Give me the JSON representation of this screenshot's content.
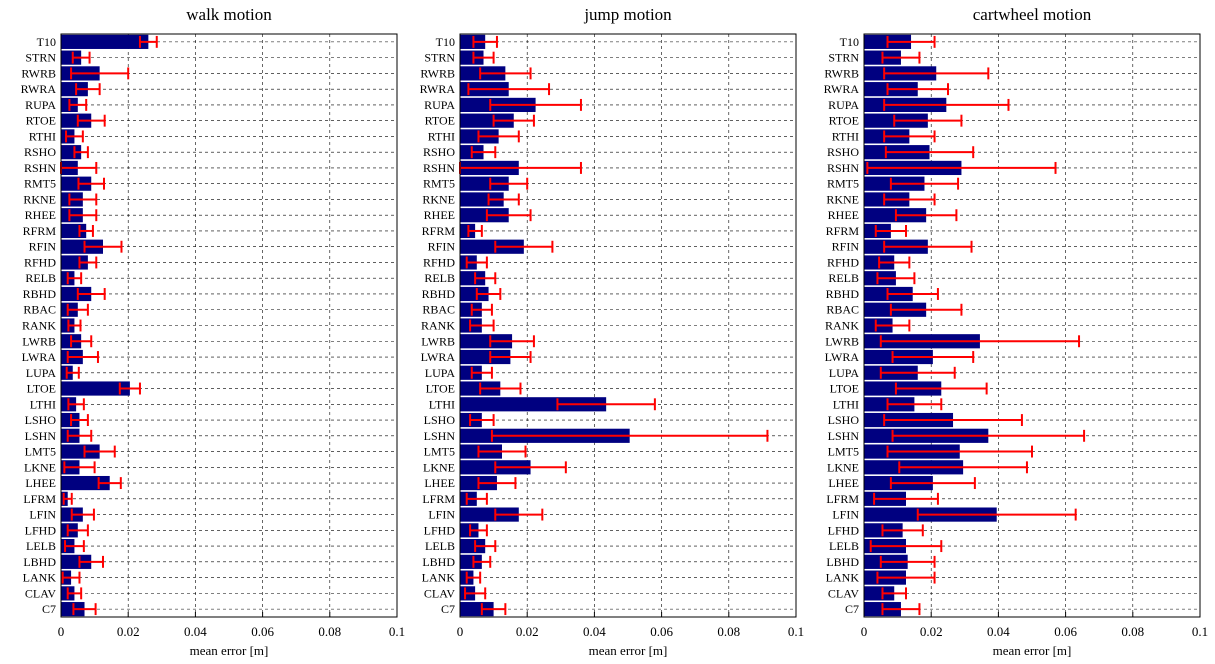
{
  "colors": {
    "bar": "#000080",
    "error": "#ff0000",
    "grid": "#000000",
    "axis": "#000000"
  },
  "chart_data": [
    {
      "type": "bar",
      "orientation": "horizontal",
      "title": "walk motion",
      "xlabel": "mean error [m]",
      "xlim": [
        0,
        0.1
      ],
      "xticks": [
        "0",
        "0.02",
        "0.04",
        "0.06",
        "0.08",
        "0.1"
      ],
      "grid": true,
      "categories": [
        "T10",
        "STRN",
        "RWRB",
        "RWRA",
        "RUPA",
        "RTOE",
        "RTHI",
        "RSHO",
        "RSHN",
        "RMT5",
        "RKNE",
        "RHEE",
        "RFRM",
        "RFIN",
        "RFHD",
        "RELB",
        "RBHD",
        "RBAC",
        "RANK",
        "LWRB",
        "LWRA",
        "LUPA",
        "LTOE",
        "LTHI",
        "LSHO",
        "LSHN",
        "LMT5",
        "LKNE",
        "LHEE",
        "LFRM",
        "LFIN",
        "LFHD",
        "LELB",
        "LBHD",
        "LANK",
        "CLAV",
        "C7"
      ],
      "values": [
        0.026,
        0.006,
        0.0115,
        0.008,
        0.005,
        0.009,
        0.004,
        0.006,
        0.005,
        0.009,
        0.0065,
        0.0065,
        0.0075,
        0.0125,
        0.008,
        0.004,
        0.009,
        0.005,
        0.004,
        0.006,
        0.0065,
        0.0035,
        0.0205,
        0.0045,
        0.0055,
        0.0055,
        0.0115,
        0.0055,
        0.0145,
        0.002,
        0.0065,
        0.005,
        0.004,
        0.009,
        0.003,
        0.004,
        0.007
      ],
      "errors": [
        0.0025,
        0.0025,
        0.0085,
        0.0035,
        0.0025,
        0.004,
        0.0025,
        0.002,
        0.0055,
        0.0038,
        0.004,
        0.004,
        0.002,
        0.0055,
        0.0025,
        0.002,
        0.004,
        0.003,
        0.0018,
        0.003,
        0.0045,
        0.0018,
        0.003,
        0.0023,
        0.0025,
        0.0035,
        0.0045,
        0.0045,
        0.0033,
        0.0012,
        0.0033,
        0.003,
        0.0028,
        0.0035,
        0.0025,
        0.002,
        0.0033
      ]
    },
    {
      "type": "bar",
      "orientation": "horizontal",
      "title": "jump motion",
      "xlabel": "mean error [m]",
      "xlim": [
        0,
        0.1
      ],
      "xticks": [
        "0",
        "0.02",
        "0.04",
        "0.06",
        "0.08",
        "0.1"
      ],
      "grid": true,
      "categories": [
        "T10",
        "STRN",
        "RWRB",
        "RWRA",
        "RUPA",
        "RTOE",
        "RTHI",
        "RSHO",
        "RSHN",
        "RMT5",
        "RKNE",
        "RHEE",
        "RFRM",
        "RFIN",
        "RFHD",
        "RELB",
        "RBHD",
        "RBAC",
        "RANK",
        "LWRB",
        "LWRA",
        "LUPA",
        "LTOE",
        "LTHI",
        "LSHO",
        "LSHN",
        "LMT5",
        "LKNE",
        "LHEE",
        "LFRM",
        "LFIN",
        "LFHD",
        "LELB",
        "LBHD",
        "LANK",
        "CLAV",
        "C7"
      ],
      "values": [
        0.0075,
        0.007,
        0.0135,
        0.0145,
        0.0225,
        0.016,
        0.0115,
        0.007,
        0.0175,
        0.0145,
        0.013,
        0.0145,
        0.0045,
        0.019,
        0.005,
        0.0075,
        0.0085,
        0.0065,
        0.0065,
        0.0155,
        0.015,
        0.0065,
        0.012,
        0.0435,
        0.0065,
        0.0505,
        0.0125,
        0.021,
        0.011,
        0.005,
        0.0175,
        0.0055,
        0.0075,
        0.0065,
        0.004,
        0.0045,
        0.01
      ],
      "errors": [
        0.0035,
        0.003,
        0.0075,
        0.012,
        0.0135,
        0.006,
        0.006,
        0.0035,
        0.0185,
        0.0055,
        0.0045,
        0.0065,
        0.002,
        0.0085,
        0.003,
        0.003,
        0.0035,
        0.003,
        0.0035,
        0.0065,
        0.006,
        0.003,
        0.006,
        0.0145,
        0.0035,
        0.041,
        0.007,
        0.0105,
        0.0055,
        0.003,
        0.007,
        0.0025,
        0.003,
        0.0025,
        0.002,
        0.003,
        0.0035
      ]
    },
    {
      "type": "bar",
      "orientation": "horizontal",
      "title": "cartwheel motion",
      "xlabel": "mean error [m]",
      "xlim": [
        0,
        0.1
      ],
      "xticks": [
        "0",
        "0.02",
        "0.04",
        "0.06",
        "0.08",
        "0.1"
      ],
      "grid": true,
      "categories": [
        "T10",
        "STRN",
        "RWRB",
        "RWRA",
        "RUPA",
        "RTOE",
        "RTHI",
        "RSHO",
        "RSHN",
        "RMT5",
        "RKNE",
        "RHEE",
        "RFRM",
        "RFIN",
        "RFHD",
        "RELB",
        "RBHD",
        "RBAC",
        "RANK",
        "LWRB",
        "LWRA",
        "LUPA",
        "LTOE",
        "LTHI",
        "LSHO",
        "LSHN",
        "LMT5",
        "LKNE",
        "LHEE",
        "LFRM",
        "LFIN",
        "LFHD",
        "LELB",
        "LBHD",
        "LANK",
        "CLAV",
        "C7"
      ],
      "values": [
        0.014,
        0.011,
        0.0215,
        0.016,
        0.0245,
        0.019,
        0.0135,
        0.0195,
        0.029,
        0.018,
        0.0135,
        0.0185,
        0.008,
        0.019,
        0.009,
        0.0095,
        0.0145,
        0.0185,
        0.0085,
        0.0345,
        0.0205,
        0.016,
        0.023,
        0.015,
        0.0265,
        0.037,
        0.0285,
        0.0295,
        0.0205,
        0.0125,
        0.0395,
        0.0115,
        0.0125,
        0.013,
        0.0125,
        0.009,
        0.011
      ],
      "errors": [
        0.007,
        0.0055,
        0.0155,
        0.009,
        0.0185,
        0.01,
        0.0075,
        0.013,
        0.028,
        0.01,
        0.0075,
        0.009,
        0.0045,
        0.013,
        0.0045,
        0.0055,
        0.0075,
        0.0105,
        0.005,
        0.0295,
        0.012,
        0.011,
        0.0135,
        0.008,
        0.0205,
        0.0285,
        0.0215,
        0.019,
        0.0125,
        0.0095,
        0.0235,
        0.006,
        0.0105,
        0.008,
        0.0085,
        0.0035,
        0.0055
      ]
    }
  ]
}
